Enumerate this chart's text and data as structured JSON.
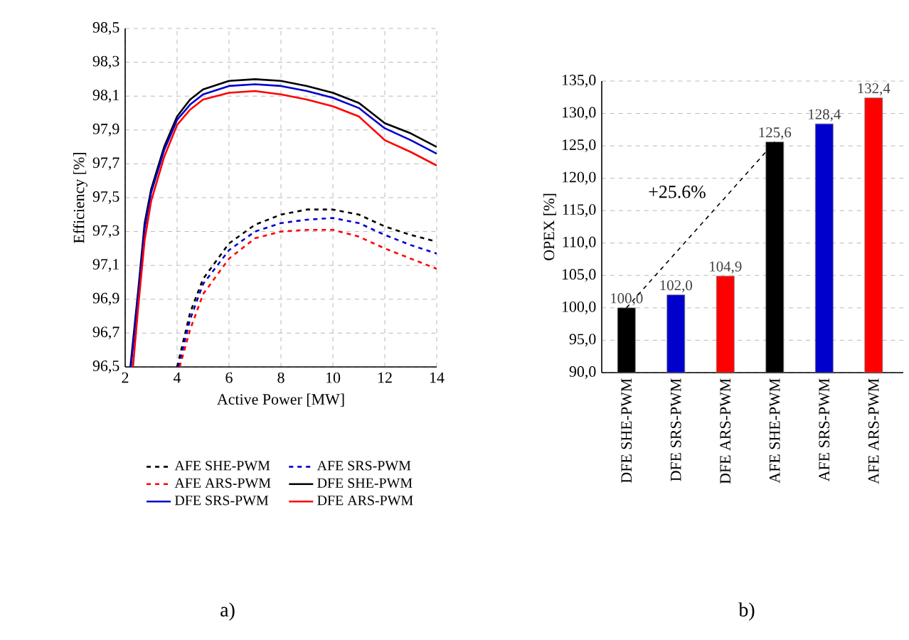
{
  "chart_data": [
    {
      "type": "line",
      "xlabel": "Active Power [MW]",
      "ylabel": "Efficiency [%]",
      "xlim": [
        2,
        14
      ],
      "ylim": [
        96.5,
        98.5
      ],
      "xticks": [
        2,
        4,
        6,
        8,
        10,
        12,
        14
      ],
      "yticks": [
        {
          "value": 96.5,
          "label": "96,5"
        },
        {
          "value": 96.7,
          "label": "96,7"
        },
        {
          "value": 96.9,
          "label": "96,9"
        },
        {
          "value": 97.1,
          "label": "97,1"
        },
        {
          "value": 97.3,
          "label": "97,3"
        },
        {
          "value": 97.5,
          "label": "97,5"
        },
        {
          "value": 97.7,
          "label": "97,7"
        },
        {
          "value": 97.9,
          "label": "97,9"
        },
        {
          "value": 98.1,
          "label": "98,1"
        },
        {
          "value": 98.3,
          "label": "98,3"
        },
        {
          "value": 98.5,
          "label": "98,5"
        }
      ],
      "grid": true,
      "legend": "bottom",
      "annotations": [
        "a)"
      ],
      "series": [
        {
          "name": "AFE SHE-PWM",
          "color": "#000000",
          "line_style": "dashed",
          "x": [
            4.0,
            4.5,
            5,
            6,
            7,
            8,
            9,
            10,
            11,
            12,
            13,
            14
          ],
          "values": [
            96.5,
            96.82,
            97.02,
            97.23,
            97.34,
            97.4,
            97.43,
            97.43,
            97.4,
            97.33,
            97.28,
            97.24
          ]
        },
        {
          "name": "AFE SRS-PWM",
          "color": "#0000cc",
          "line_style": "dashed",
          "x": [
            4.05,
            4.5,
            5,
            6,
            7,
            8,
            9,
            10,
            11,
            12,
            13,
            14
          ],
          "values": [
            96.5,
            96.78,
            96.99,
            97.19,
            97.3,
            97.35,
            97.37,
            97.38,
            97.35,
            97.28,
            97.22,
            97.17
          ]
        },
        {
          "name": "AFE ARS-PWM",
          "color": "#ff0000",
          "line_style": "dashed",
          "x": [
            4.1,
            4.5,
            5,
            6,
            7,
            8,
            9,
            10,
            11,
            12,
            13,
            14
          ],
          "values": [
            96.5,
            96.72,
            96.93,
            97.14,
            97.26,
            97.3,
            97.31,
            97.31,
            97.27,
            97.2,
            97.14,
            97.08
          ]
        },
        {
          "name": "DFE SHE-PWM",
          "color": "#000000",
          "line_style": "solid",
          "x": [
            2.2,
            2.5,
            2.75,
            3,
            3.5,
            4,
            4.5,
            5,
            6,
            7,
            8,
            9,
            10,
            11,
            11.5,
            12,
            13,
            14
          ],
          "values": [
            96.5,
            96.95,
            97.35,
            97.55,
            97.8,
            97.98,
            98.08,
            98.14,
            98.19,
            98.2,
            98.19,
            98.16,
            98.12,
            98.06,
            98.0,
            97.94,
            97.88,
            97.8
          ]
        },
        {
          "name": "DFE SRS-PWM",
          "color": "#0000cc",
          "line_style": "solid",
          "x": [
            2.22,
            2.5,
            2.75,
            3,
            3.5,
            4,
            4.5,
            5,
            6,
            7,
            8,
            9,
            10,
            11,
            11.5,
            12,
            13,
            14
          ],
          "values": [
            96.5,
            96.92,
            97.32,
            97.53,
            97.78,
            97.96,
            98.05,
            98.11,
            98.16,
            98.17,
            98.16,
            98.13,
            98.09,
            98.03,
            97.97,
            97.91,
            97.84,
            97.76
          ]
        },
        {
          "name": "DFE ARS-PWM",
          "color": "#ff0000",
          "line_style": "solid",
          "x": [
            2.3,
            2.5,
            2.75,
            3,
            3.5,
            4,
            4.5,
            5,
            6,
            7,
            8,
            9,
            10,
            11,
            11.5,
            12,
            13,
            14
          ],
          "values": [
            96.5,
            96.85,
            97.25,
            97.48,
            97.74,
            97.93,
            98.02,
            98.08,
            98.12,
            98.13,
            98.11,
            98.08,
            98.04,
            97.98,
            97.91,
            97.84,
            97.77,
            97.69
          ]
        }
      ]
    },
    {
      "type": "bar",
      "ylabel": "OPEX [%]",
      "ylim": [
        90,
        135
      ],
      "categories": [
        "DFE SHE-PWM",
        "DFE SRS-PWM",
        "DFE ARS-PWM",
        "AFE SHE-PWM",
        "AFE SRS-PWM",
        "AFE ARS-PWM"
      ],
      "yticks": [
        {
          "value": 90,
          "label": "90,0"
        },
        {
          "value": 95,
          "label": "95,0"
        },
        {
          "value": 100,
          "label": "100,0"
        },
        {
          "value": 105,
          "label": "105,0"
        },
        {
          "value": 110,
          "label": "110,0"
        },
        {
          "value": 115,
          "label": "115,0"
        },
        {
          "value": 120,
          "label": "120,0"
        },
        {
          "value": 125,
          "label": "125,0"
        },
        {
          "value": 130,
          "label": "130,0"
        },
        {
          "value": 135,
          "label": "135,0"
        }
      ],
      "values": [
        100.0,
        102.0,
        104.9,
        125.6,
        128.4,
        132.4
      ],
      "value_labels": [
        "100,0",
        "102,0",
        "104,9",
        "125,6",
        "128,4",
        "132,4"
      ],
      "colors": [
        "#000000",
        "#0000cc",
        "#ff0000",
        "#000000",
        "#0000cc",
        "#ff0000"
      ],
      "grid": "y",
      "annotations": [
        "+25.6%",
        "b)"
      ]
    }
  ]
}
